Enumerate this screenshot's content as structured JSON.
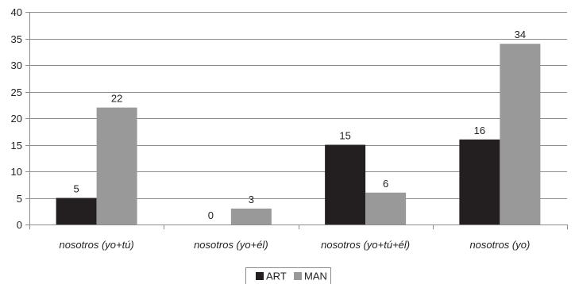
{
  "chart_data": {
    "type": "bar",
    "categories": [
      "nosotros (yo+tú)",
      "nosotros (yo+él)",
      "nosotros (yo+tú+él)",
      "nosotros (yo)"
    ],
    "series": [
      {
        "name": "ART",
        "values": [
          5,
          0,
          15,
          16
        ],
        "color": "#231f20"
      },
      {
        "name": "MAN",
        "values": [
          22,
          3,
          6,
          34
        ],
        "color": "#999999"
      }
    ],
    "yticks": [
      0,
      5,
      10,
      15,
      20,
      25,
      30,
      35,
      40
    ],
    "ylim": [
      0,
      40
    ],
    "grid": true,
    "legend_position": "bottom-center"
  }
}
